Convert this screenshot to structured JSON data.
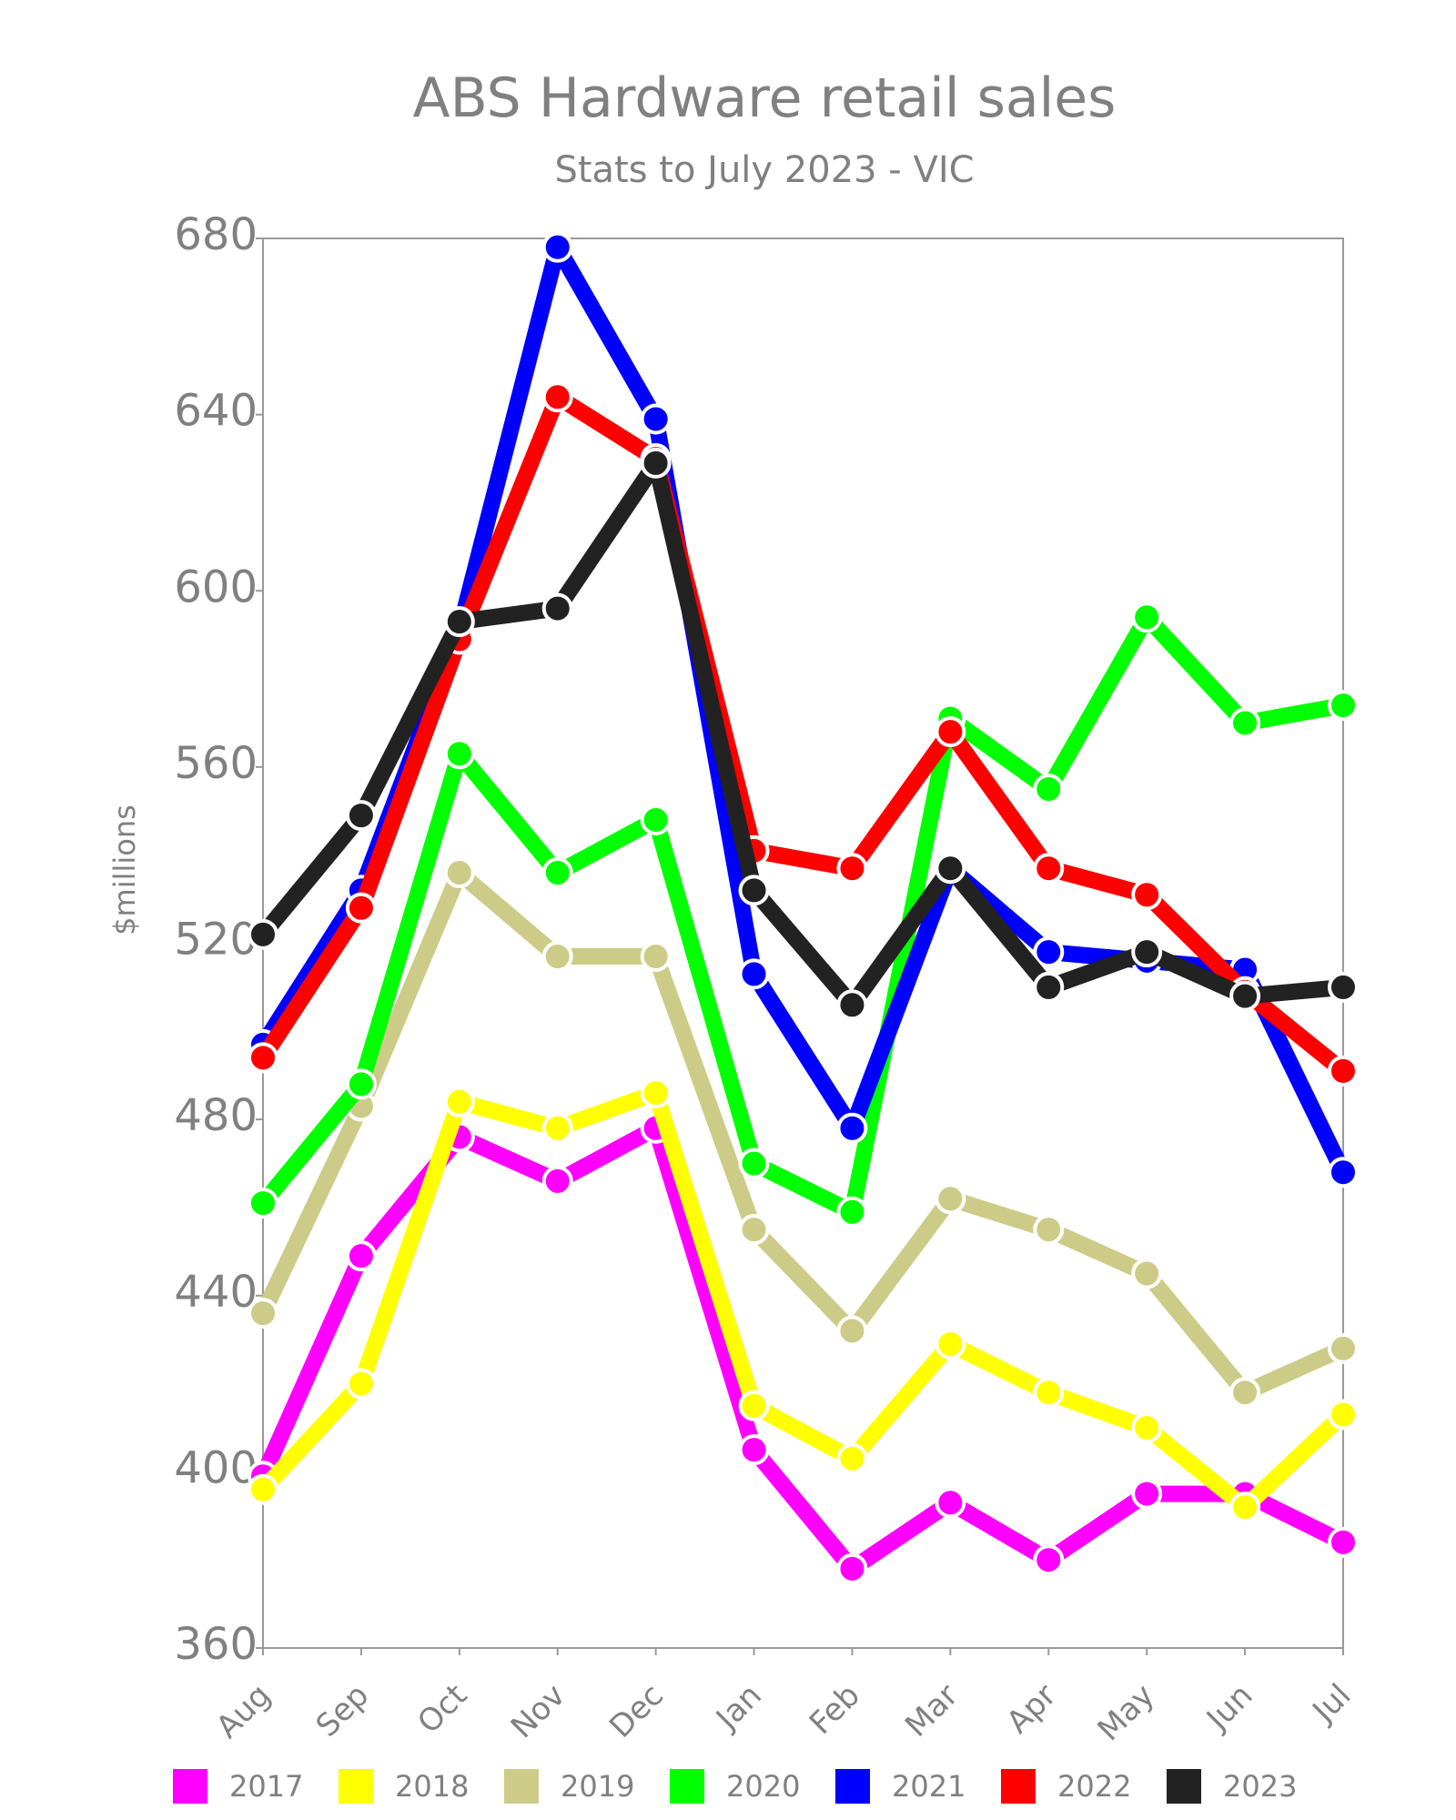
{
  "chart_data": {
    "type": "line",
    "title": "ABS Hardware retail sales",
    "subtitle": "Stats to July 2023 - VIC",
    "xlabel": "",
    "ylabel": "$millions",
    "ylim": [
      360,
      680
    ],
    "yticks": [
      360,
      400,
      440,
      480,
      520,
      560,
      600,
      640,
      680
    ],
    "categories": [
      "Aug",
      "Sep",
      "Oct",
      "Nov",
      "Dec",
      "Jan",
      "Feb",
      "Mar",
      "Apr",
      "May",
      "Jun",
      "Jul"
    ],
    "legend_position": "bottom",
    "grid": false,
    "series": [
      {
        "name": "2017",
        "color": "#ff00ff",
        "values": [
          399,
          449,
          476,
          466,
          478,
          405,
          378,
          393,
          380,
          395,
          395,
          384
        ]
      },
      {
        "name": "2018",
        "color": "#ffff00",
        "values": [
          396,
          420,
          484,
          478,
          486,
          415,
          403,
          429,
          418,
          410,
          392,
          413
        ]
      },
      {
        "name": "2019",
        "color": "#cccc88",
        "values": [
          436,
          483,
          536,
          517,
          517,
          455,
          432,
          462,
          455,
          445,
          418,
          428
        ]
      },
      {
        "name": "2020",
        "color": "#00ff00",
        "values": [
          461,
          488,
          563,
          536,
          548,
          470,
          459,
          571,
          555,
          594,
          570,
          574
        ]
      },
      {
        "name": "2021",
        "color": "#0000ff",
        "values": [
          497,
          532,
          591,
          678,
          639,
          513,
          478,
          537,
          518,
          516,
          514,
          468
        ]
      },
      {
        "name": "2022",
        "color": "#ff0000",
        "values": [
          494,
          528,
          589,
          644,
          630,
          541,
          537,
          568,
          537,
          531,
          509,
          491
        ]
      },
      {
        "name": "2023",
        "color": "#222222",
        "values": [
          522,
          549,
          593,
          596,
          629,
          532,
          506,
          537,
          510,
          518,
          508,
          510
        ]
      }
    ]
  }
}
